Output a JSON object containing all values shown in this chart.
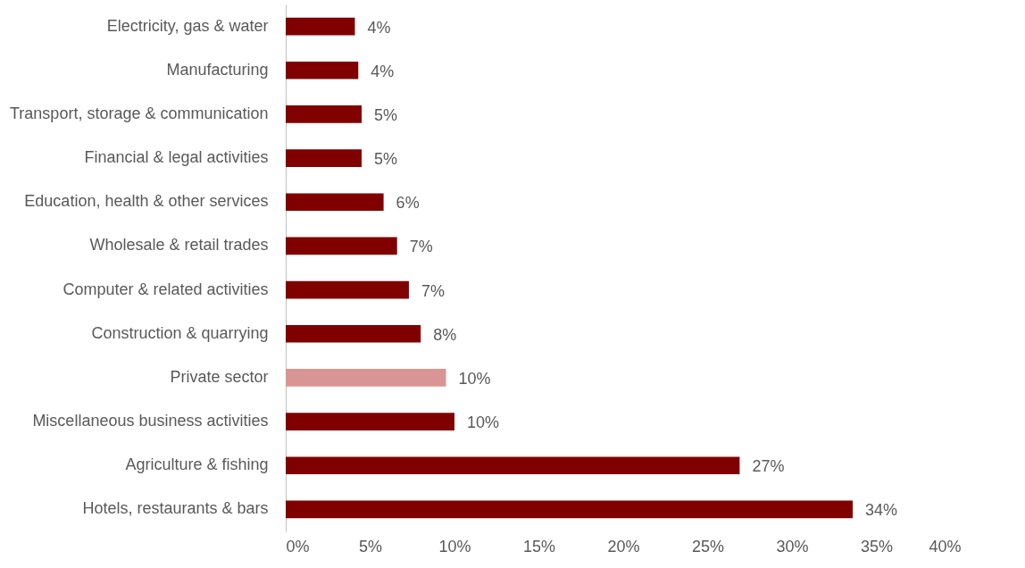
{
  "chart_data": {
    "type": "bar",
    "orientation": "horizontal",
    "categories": [
      "Electricity, gas & water",
      "Manufacturing",
      "Transport, storage & communication",
      "Financial & legal activities",
      "Education, health & other services",
      "Wholesale & retail trades",
      "Computer & related activities",
      "Construction & quarrying",
      "Private sector",
      "Miscellaneous business activities",
      "Agriculture & fishing",
      "Hotels, restaurants & bars"
    ],
    "values": [
      4.1,
      4.3,
      4.5,
      4.5,
      5.8,
      6.6,
      7.3,
      8.0,
      9.5,
      10.0,
      26.9,
      33.6
    ],
    "value_labels": [
      "4%",
      "4%",
      "5%",
      "5%",
      "6%",
      "7%",
      "7%",
      "8%",
      "10%",
      "10%",
      "27%",
      "34%"
    ],
    "colors": [
      "#800000",
      "#800000",
      "#800000",
      "#800000",
      "#800000",
      "#800000",
      "#800000",
      "#800000",
      "#d99594",
      "#800000",
      "#800000",
      "#800000"
    ],
    "xlim": [
      0,
      40
    ],
    "xticks": [
      {
        "value": 0,
        "label": "0%"
      },
      {
        "value": 5,
        "label": "5%"
      },
      {
        "value": 10,
        "label": "10%"
      },
      {
        "value": 15,
        "label": "15%"
      },
      {
        "value": 20,
        "label": "20%"
      },
      {
        "value": 25,
        "label": "25%"
      },
      {
        "value": 30,
        "label": "30%"
      },
      {
        "value": 35,
        "label": "35%"
      },
      {
        "value": 40,
        "label": "40%"
      }
    ],
    "grid": false,
    "legend": false
  }
}
